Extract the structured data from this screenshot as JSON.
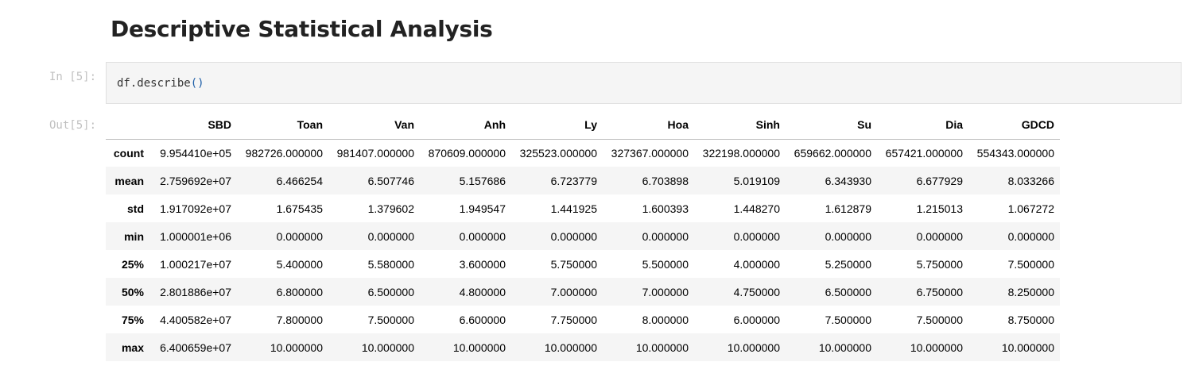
{
  "notebook": {
    "heading": "Descriptive Statistical Analysis",
    "input_prompt": "In [5]:",
    "output_prompt": "Out[5]:",
    "code_object": "df.describe",
    "code_parens": "()"
  },
  "table": {
    "columns": [
      "SBD",
      "Toan",
      "Van",
      "Anh",
      "Ly",
      "Hoa",
      "Sinh",
      "Su",
      "Dia",
      "GDCD"
    ],
    "rows": [
      {
        "label": "count",
        "values": [
          "9.954410e+05",
          "982726.000000",
          "981407.000000",
          "870609.000000",
          "325523.000000",
          "327367.000000",
          "322198.000000",
          "659662.000000",
          "657421.000000",
          "554343.000000"
        ]
      },
      {
        "label": "mean",
        "values": [
          "2.759692e+07",
          "6.466254",
          "6.507746",
          "5.157686",
          "6.723779",
          "6.703898",
          "5.019109",
          "6.343930",
          "6.677929",
          "8.033266"
        ]
      },
      {
        "label": "std",
        "values": [
          "1.917092e+07",
          "1.675435",
          "1.379602",
          "1.949547",
          "1.441925",
          "1.600393",
          "1.448270",
          "1.612879",
          "1.215013",
          "1.067272"
        ]
      },
      {
        "label": "min",
        "values": [
          "1.000001e+06",
          "0.000000",
          "0.000000",
          "0.000000",
          "0.000000",
          "0.000000",
          "0.000000",
          "0.000000",
          "0.000000",
          "0.000000"
        ]
      },
      {
        "label": "25%",
        "values": [
          "1.000217e+07",
          "5.400000",
          "5.580000",
          "3.600000",
          "5.750000",
          "5.500000",
          "4.000000",
          "5.250000",
          "5.750000",
          "7.500000"
        ]
      },
      {
        "label": "50%",
        "values": [
          "2.801886e+07",
          "6.800000",
          "6.500000",
          "4.800000",
          "7.000000",
          "7.000000",
          "4.750000",
          "6.500000",
          "6.750000",
          "8.250000"
        ]
      },
      {
        "label": "75%",
        "values": [
          "4.400582e+07",
          "7.800000",
          "7.500000",
          "6.600000",
          "7.750000",
          "8.000000",
          "6.000000",
          "7.500000",
          "7.500000",
          "8.750000"
        ]
      },
      {
        "label": "max",
        "values": [
          "6.400659e+07",
          "10.000000",
          "10.000000",
          "10.000000",
          "10.000000",
          "10.000000",
          "10.000000",
          "10.000000",
          "10.000000",
          "10.000000"
        ]
      }
    ]
  }
}
